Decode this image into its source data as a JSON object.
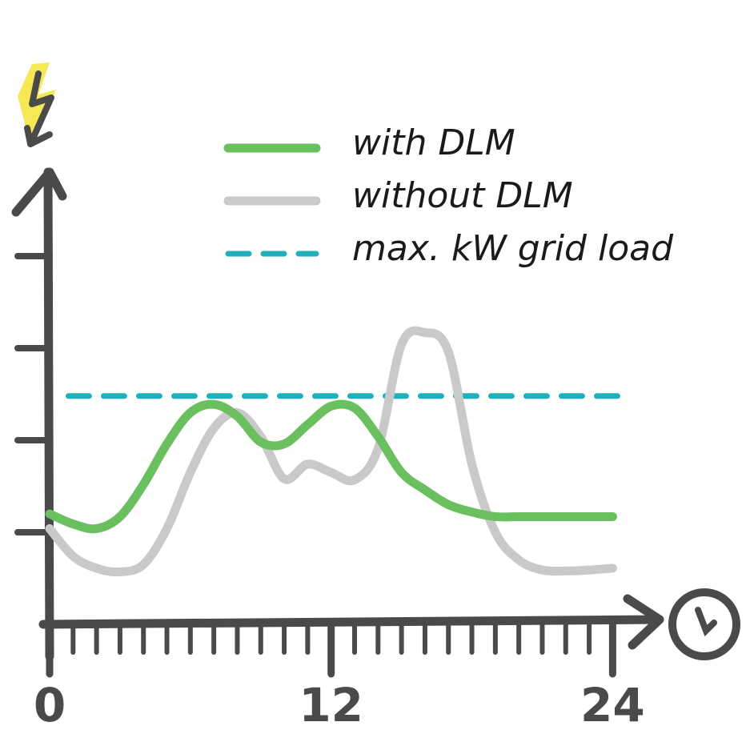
{
  "chart_data": {
    "type": "line",
    "x": [
      0,
      1,
      2,
      3,
      4,
      5,
      6,
      7,
      8,
      9,
      10,
      11,
      12,
      13,
      14,
      15,
      16,
      17,
      18,
      19,
      20,
      21,
      22,
      23,
      24
    ],
    "series": [
      {
        "name": "with DLM",
        "color": "#6abf5e",
        "values": [
          1.2,
          1.09,
          1.04,
          1.17,
          1.52,
          1.96,
          2.3,
          2.39,
          2.26,
          1.98,
          1.96,
          2.17,
          2.37,
          2.35,
          2.04,
          1.65,
          1.46,
          1.3,
          1.22,
          1.17,
          1.17,
          1.17,
          1.17,
          1.17,
          1.17
        ]
      },
      {
        "name": "without DLM",
        "color": "#c9c9c9",
        "values": [
          1.04,
          0.74,
          0.61,
          0.57,
          0.65,
          1.04,
          1.65,
          2.13,
          2.3,
          2.04,
          1.58,
          1.74,
          1.65,
          1.57,
          1.91,
          3.04,
          3.17,
          2.96,
          1.74,
          1.0,
          0.7,
          0.59,
          0.58,
          0.59,
          0.61
        ]
      },
      {
        "name": "max. kW grid load",
        "color": "#1fb0bd",
        "dashed": true,
        "x": [
          0.8,
          24.5
        ],
        "values": [
          2.48,
          2.48
        ]
      }
    ],
    "xlim": [
      0,
      26
    ],
    "xticks": [
      0,
      12,
      24
    ],
    "ylim": [
      0,
      5
    ],
    "yticks": [
      1,
      2,
      3,
      4
    ],
    "legend": "top-right"
  }
}
